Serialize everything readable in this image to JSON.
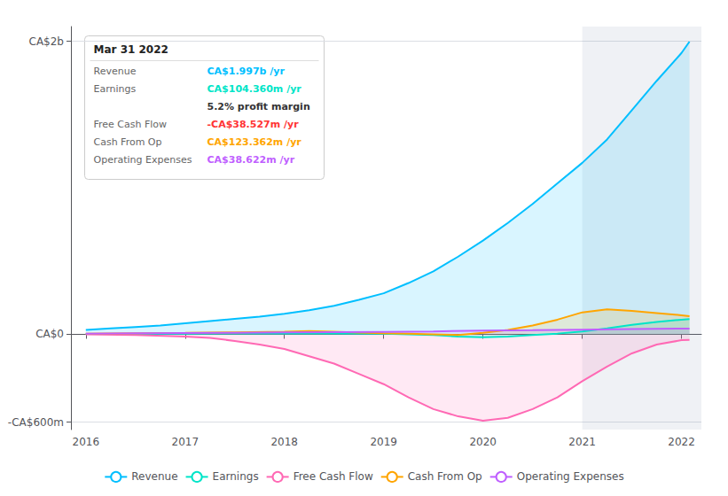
{
  "chart_data": {
    "type": "area",
    "xlim": [
      2015.85,
      2022.2
    ],
    "xticks": [
      2016,
      2017,
      2018,
      2019,
      2020,
      2021,
      2022
    ],
    "ylim": [
      -650,
      2100
    ],
    "yticks": [
      {
        "value": 2000,
        "label": "CA$2b"
      },
      {
        "value": 0,
        "label": "CA$0"
      },
      {
        "value": -600,
        "label": "-CA$600m"
      }
    ],
    "grid": true,
    "legend": "bottom",
    "shaded_from": 2021.0,
    "series": [
      {
        "name": "Revenue",
        "color": "#00bfff",
        "x": [
          2016.0,
          2016.25,
          2016.5,
          2016.75,
          2017.0,
          2017.25,
          2017.5,
          2017.75,
          2018.0,
          2018.25,
          2018.5,
          2018.75,
          2019.0,
          2019.25,
          2019.5,
          2019.75,
          2020.0,
          2020.25,
          2020.5,
          2020.75,
          2021.0,
          2021.25,
          2021.5,
          2021.75,
          2022.0,
          2022.08
        ],
        "values": [
          30,
          40,
          50,
          60,
          75,
          90,
          105,
          120,
          140,
          165,
          195,
          235,
          280,
          350,
          430,
          530,
          640,
          760,
          890,
          1030,
          1170,
          1330,
          1530,
          1730,
          1920,
          1997
        ]
      },
      {
        "name": "Earnings",
        "color": "#00e5c8",
        "x": [
          2016.0,
          2016.5,
          2017.0,
          2017.5,
          2018.0,
          2018.5,
          2019.0,
          2019.25,
          2019.5,
          2019.75,
          2020.0,
          2020.25,
          2020.5,
          2020.75,
          2021.0,
          2021.25,
          2021.5,
          2021.75,
          2022.0,
          2022.08
        ],
        "values": [
          2,
          3,
          5,
          6,
          8,
          6,
          4,
          0,
          -5,
          -15,
          -20,
          -15,
          -5,
          5,
          20,
          40,
          65,
          85,
          100,
          104
        ]
      },
      {
        "name": "Free Cash Flow",
        "color": "#ff69b4",
        "x": [
          2016.0,
          2016.5,
          2017.0,
          2017.25,
          2017.5,
          2017.75,
          2018.0,
          2018.25,
          2018.5,
          2018.75,
          2019.0,
          2019.25,
          2019.5,
          2019.75,
          2020.0,
          2020.25,
          2020.5,
          2020.75,
          2021.0,
          2021.25,
          2021.5,
          2021.75,
          2022.0,
          2022.08
        ],
        "values": [
          0,
          -5,
          -15,
          -25,
          -45,
          -70,
          -100,
          -150,
          -200,
          -270,
          -340,
          -430,
          -510,
          -560,
          -590,
          -570,
          -510,
          -430,
          -320,
          -220,
          -130,
          -70,
          -40,
          -38.5
        ]
      },
      {
        "name": "Cash From Op",
        "color": "#ffa500",
        "x": [
          2016.0,
          2016.5,
          2017.0,
          2017.5,
          2018.0,
          2018.25,
          2018.5,
          2018.75,
          2019.0,
          2019.25,
          2019.5,
          2019.75,
          2020.0,
          2020.25,
          2020.5,
          2020.75,
          2021.0,
          2021.25,
          2021.5,
          2021.75,
          2022.0,
          2022.08
        ],
        "values": [
          5,
          8,
          10,
          14,
          18,
          22,
          18,
          12,
          8,
          5,
          0,
          -5,
          10,
          30,
          60,
          100,
          150,
          170,
          160,
          145,
          130,
          123
        ]
      },
      {
        "name": "Operating Expenses",
        "color": "#bf5fff",
        "x": [
          2016.0,
          2016.5,
          2017.0,
          2017.5,
          2018.0,
          2018.5,
          2019.0,
          2019.5,
          2020.0,
          2020.5,
          2021.0,
          2021.5,
          2022.0,
          2022.08
        ],
        "values": [
          5,
          7,
          9,
          11,
          13,
          15,
          17,
          20,
          25,
          28,
          32,
          36,
          39,
          38.6
        ]
      }
    ],
    "annotation": {
      "title": "Mar 31 2022",
      "rows": [
        {
          "label": "Revenue",
          "value": "CA$1.997b /yr",
          "color": "#00bfff"
        },
        {
          "label": "Earnings",
          "value": "CA$104.360m /yr",
          "color": "#00e5c8"
        },
        {
          "value": "5.2% profit margin",
          "color": "#333333"
        },
        {
          "label": "Free Cash Flow",
          "value": "-CA$38.527m /yr",
          "color": "#ff3333"
        },
        {
          "label": "Cash From Op",
          "value": "CA$123.362m /yr",
          "color": "#ffa500"
        },
        {
          "label": "Operating Expenses",
          "value": "CA$38.622m /yr",
          "color": "#bf5fff"
        }
      ]
    }
  }
}
